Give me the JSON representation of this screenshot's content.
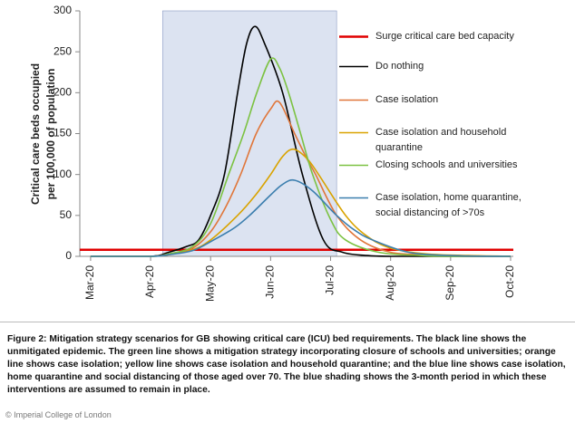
{
  "chart_data": {
    "type": "line",
    "ylabel": [
      "Critical care beds occupied",
      "per 100,000 of population"
    ],
    "xlim": [
      -0.18,
      7
    ],
    "ylim": [
      0,
      300
    ],
    "xticks": [
      {
        "value": 0,
        "label": "Mar-20"
      },
      {
        "value": 1,
        "label": "Apr-20"
      },
      {
        "value": 2,
        "label": "May-20"
      },
      {
        "value": 3,
        "label": "Jun-20"
      },
      {
        "value": 4,
        "label": "Jul-20"
      },
      {
        "value": 5,
        "label": "Aug-20"
      },
      {
        "value": 6,
        "label": "Sep-20"
      },
      {
        "value": 7,
        "label": "Oct-20"
      }
    ],
    "yticks": [
      0,
      50,
      100,
      150,
      200,
      250,
      300
    ],
    "grid": false,
    "legend": "upper right",
    "shade": {
      "xrange": [
        1.2,
        4.1
      ],
      "color": "#dce3f1"
    },
    "hline": {
      "name": "Surge critical care bed capacity",
      "value": 8,
      "color": "#e00000"
    },
    "series": [
      {
        "name": "Do nothing",
        "color": "#000000",
        "x": [
          0,
          1,
          1.3,
          1.6,
          1.8,
          2.0,
          2.23,
          2.45,
          2.6,
          2.74,
          2.9,
          3.2,
          3.53,
          3.88,
          4.2,
          4.6,
          5,
          6,
          7
        ],
        "values": [
          0,
          0,
          5,
          12,
          20,
          50,
          100,
          200,
          260,
          281,
          260,
          200,
          100,
          20,
          5,
          1,
          0,
          0,
          0
        ]
      },
      {
        "name": "Case isolation",
        "color": "#e0763a",
        "x": [
          0,
          1,
          1.3,
          1.7,
          2.0,
          2.25,
          2.5,
          2.76,
          3.0,
          3.15,
          3.4,
          3.6,
          3.75,
          4.1,
          4.5,
          5.0,
          5.6,
          6.3,
          7
        ],
        "values": [
          0,
          0,
          3,
          10,
          30,
          60,
          100,
          150,
          180,
          188,
          150,
          120,
          100,
          50,
          20,
          5,
          2,
          0,
          0
        ]
      },
      {
        "name": "Case isolation and household quarantine",
        "color": "#d9a300",
        "x": [
          0,
          1,
          1.3,
          1.7,
          2.0,
          2.45,
          2.75,
          3.0,
          3.2,
          3.38,
          3.6,
          3.8,
          4.25,
          4.6,
          5.0,
          5.6,
          6.3,
          7
        ],
        "values": [
          0,
          0,
          2,
          8,
          20,
          50,
          75,
          100,
          122,
          131,
          120,
          100,
          50,
          25,
          10,
          3,
          1,
          0
        ]
      },
      {
        "name": "Closing schools and universities",
        "color": "#7cc242",
        "x": [
          0,
          1,
          1.3,
          1.7,
          2.0,
          2.3,
          2.55,
          2.77,
          3.0,
          3.15,
          3.3,
          3.5,
          3.7,
          4.0,
          4.25,
          4.8,
          5.5,
          6,
          7
        ],
        "values": [
          0,
          0,
          3,
          12,
          40,
          100,
          150,
          200,
          241,
          230,
          200,
          150,
          100,
          45,
          20,
          5,
          1,
          0,
          0
        ]
      },
      {
        "name": "Case isolation, home quarantine, social distancing of >70s",
        "color": "#3b7eae",
        "x": [
          0,
          1,
          1.3,
          1.7,
          2.05,
          2.4,
          2.65,
          3.0,
          3.2,
          3.4,
          3.7,
          4.1,
          4.4,
          4.7,
          5.3,
          6,
          7
        ],
        "values": [
          0,
          0,
          2,
          7,
          20,
          35,
          50,
          75,
          88,
          93,
          80,
          50,
          32,
          20,
          5,
          1,
          0
        ]
      }
    ]
  },
  "caption": "Figure 2: Mitigation strategy scenarios for GB showing critical care (ICU) bed requirements. The black line shows the unmitigated epidemic. The green line shows a mitigation strategy incorporating closure of schools and universities; orange line shows case isolation; yellow line shows case isolation and household quarantine; and the blue line shows case isolation, home quarantine and social distancing of those aged over 70. The blue shading shows the 3-month period in which these interventions are assumed to remain in place.",
  "credit": "© Imperial College of London"
}
